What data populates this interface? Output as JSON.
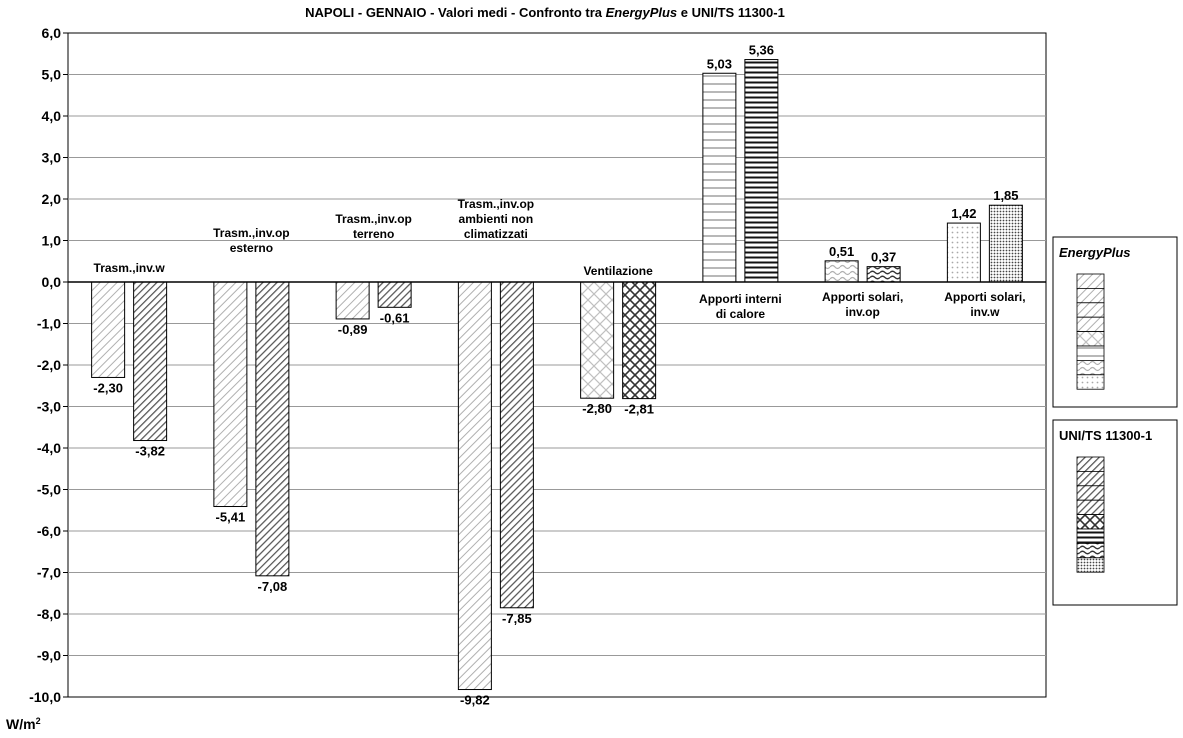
{
  "chart_data": {
    "type": "bar",
    "title_parts": [
      "NAPOLI - GENNAIO - Valori medi - Confronto tra ",
      "EnergyPlus",
      " e UNI/TS 11300-1"
    ],
    "unit_label": "W/m",
    "unit_sup": "2",
    "ylim": [
      -10,
      6
    ],
    "y_ticks": [
      "6,0",
      "5,0",
      "4,0",
      "3,0",
      "2,0",
      "1,0",
      "0,0",
      "-1,0",
      "-2,0",
      "-3,0",
      "-4,0",
      "-5,0",
      "-6,0",
      "-7,0",
      "-8,0",
      "-9,0",
      "-10,0"
    ],
    "grid": true,
    "series": [
      {
        "name": "EnergyPlus",
        "values": [
          -2.3,
          -5.41,
          -0.89,
          -9.82,
          -2.8,
          5.03,
          0.51,
          1.42
        ],
        "labels": [
          "-2,30",
          "-5,41",
          "-0,89",
          "-9,82",
          "-2,80",
          "5,03",
          "0,51",
          "1,42"
        ]
      },
      {
        "name": "UNI/TS 11300-1",
        "values": [
          -3.82,
          -7.08,
          -0.61,
          -7.85,
          -2.81,
          5.36,
          0.37,
          1.85
        ],
        "labels": [
          "-3,82",
          "-7,08",
          "-0,61",
          "-7,85",
          "-2,81",
          "5,36",
          "0,37",
          "1,85"
        ]
      }
    ],
    "categories": [
      [
        "Trasm.,inv.w"
      ],
      [
        "Trasm.,inv.op",
        "esterno"
      ],
      [
        "Trasm.,inv.op",
        "terreno"
      ],
      [
        "Trasm.,inv.op",
        "ambienti non",
        "climatizzati"
      ],
      [
        "Ventilazione"
      ],
      [
        "Apporti interni",
        "di calore"
      ],
      [
        "Apporti solari,",
        "inv.op"
      ],
      [
        "Apporti solari,",
        "inv.w"
      ]
    ],
    "legend": {
      "placement": "right",
      "boxes": [
        {
          "title": "EnergyPlus",
          "italic": true,
          "series": 0
        },
        {
          "title": "UNI/TS 11300-1",
          "italic": false,
          "series": 1
        }
      ]
    },
    "colors": {
      "bar_fill": "#ffffff",
      "light_pattern": "#b0b0b0",
      "dark_pattern": "#444444",
      "grid": "#999999"
    }
  }
}
